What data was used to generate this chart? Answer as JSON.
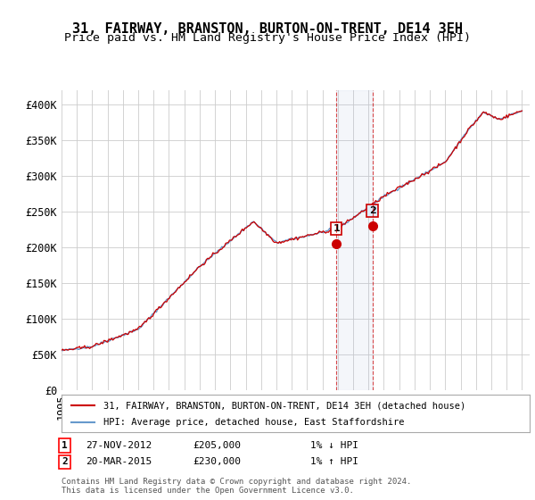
{
  "title": "31, FAIRWAY, BRANSTON, BURTON-ON-TRENT, DE14 3EH",
  "subtitle": "Price paid vs. HM Land Registry's House Price Index (HPI)",
  "ylabel_ticks": [
    "£0",
    "£50K",
    "£100K",
    "£150K",
    "£200K",
    "£250K",
    "£300K",
    "£350K",
    "£400K"
  ],
  "ytick_values": [
    0,
    50000,
    100000,
    150000,
    200000,
    250000,
    300000,
    350000,
    400000
  ],
  "ylim": [
    0,
    420000
  ],
  "xlim_start": 1995.0,
  "xlim_end": 2025.5,
  "legend_line1": "31, FAIRWAY, BRANSTON, BURTON-ON-TRENT, DE14 3EH (detached house)",
  "legend_line2": "HPI: Average price, detached house, East Staffordshire",
  "sale1_label": "1",
  "sale1_date": "27-NOV-2012",
  "sale1_price": "£205,000",
  "sale1_hpi": "1% ↓ HPI",
  "sale2_label": "2",
  "sale2_date": "20-MAR-2015",
  "sale2_price": "£230,000",
  "sale2_hpi": "1% ↑ HPI",
  "footnote": "Contains HM Land Registry data © Crown copyright and database right 2024.\nThis data is licensed under the Open Government Licence v3.0.",
  "line_color_red": "#cc0000",
  "line_color_blue": "#6699cc",
  "marker1_x": 2012.9,
  "marker1_y": 205000,
  "marker2_x": 2015.25,
  "marker2_y": 230000,
  "shade_x1": 2012.9,
  "shade_x2": 2015.25,
  "background_color": "#ffffff",
  "grid_color": "#cccccc",
  "title_fontsize": 11,
  "subtitle_fontsize": 9.5,
  "tick_fontsize": 8.5
}
